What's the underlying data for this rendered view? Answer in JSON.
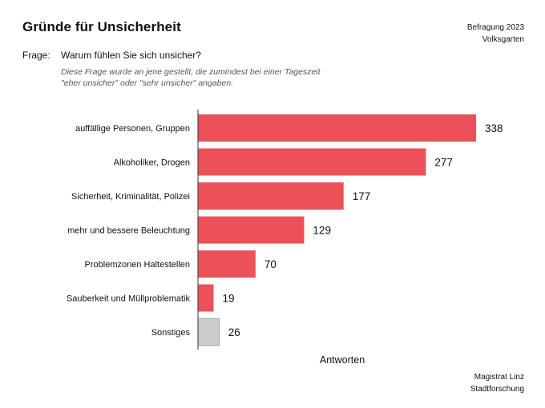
{
  "header": {
    "title": "Gründe für Unsicherheit",
    "survey_line1": "Befragung 2023",
    "survey_line2": "Volksgarten",
    "question_label": "Frage:",
    "question_text": "Warum fühlen Sie sich unsicher?",
    "note_line1": "Diese Frage wurde an jene gestellt, die zumindest bei einer Tageszeit",
    "note_line2": "\"eher unsicher\" oder \"sehr unsicher\" angaben."
  },
  "footer": {
    "source_line1": "Magistrat Linz",
    "source_line2": "Stadtforschung"
  },
  "chart_data": {
    "type": "bar",
    "orientation": "horizontal",
    "xlabel": "Antworten",
    "ylabel": "",
    "xlim": [
      0,
      350
    ],
    "grid": false,
    "categories": [
      "auffällige Personen, Gruppen",
      "Alkoholiker, Drogen",
      "Sicherheit, Kriminalität, Polizei",
      "mehr und bessere Beleuchtung",
      "Problemzonen Haltestellen",
      "Sauberkeit und Müllproblematik",
      "Sonstiges"
    ],
    "values": [
      338,
      277,
      177,
      129,
      70,
      19,
      26
    ],
    "colors": [
      "#eb5157",
      "#eb5157",
      "#eb5157",
      "#eb5157",
      "#eb5157",
      "#eb5157",
      "#cccccc"
    ]
  }
}
